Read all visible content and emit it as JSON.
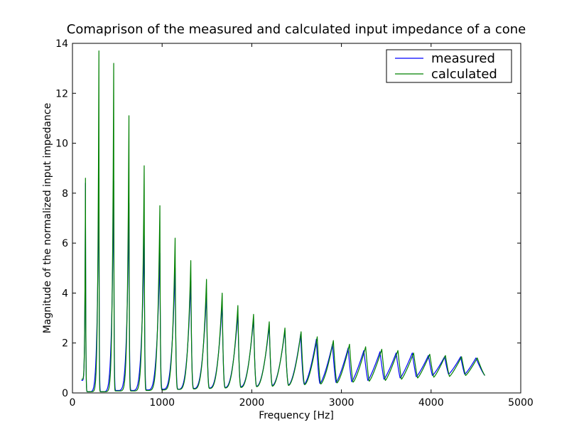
{
  "chart_data": {
    "type": "line",
    "title": "Comaprison of the measured and calculated input impedance of a cone",
    "xlabel": "Frequency [Hz]",
    "ylabel": "Magnitude of the normalized input impedance",
    "xlim": [
      0,
      5000
    ],
    "ylim": [
      0,
      14
    ],
    "xticks": [
      0,
      1000,
      2000,
      3000,
      4000,
      5000
    ],
    "xtick_labels": [
      "0",
      "1000",
      "2000",
      "3000",
      "4000",
      "5000"
    ],
    "yticks": [
      0,
      2,
      4,
      6,
      8,
      10,
      12,
      14
    ],
    "ytick_labels": [
      "0",
      "2",
      "4",
      "6",
      "8",
      "10",
      "12",
      "14"
    ],
    "grid": false,
    "legend_position": "top-right",
    "series": [
      {
        "name": "measured",
        "color": "#0000ff",
        "x_range": [
          100,
          4600
        ],
        "peaks": [
          {
            "x": 145,
            "y": 8.4
          },
          {
            "x": 295,
            "y": 8.6
          },
          {
            "x": 460,
            "y": 8.5
          },
          {
            "x": 630,
            "y": 7.6
          },
          {
            "x": 800,
            "y": 6.3
          },
          {
            "x": 975,
            "y": 5.6
          },
          {
            "x": 1145,
            "y": 5.0
          },
          {
            "x": 1320,
            "y": 4.5
          },
          {
            "x": 1495,
            "y": 4.0
          },
          {
            "x": 1670,
            "y": 3.6
          },
          {
            "x": 1845,
            "y": 3.2
          },
          {
            "x": 2020,
            "y": 3.0
          },
          {
            "x": 2195,
            "y": 2.7
          },
          {
            "x": 2370,
            "y": 2.5
          },
          {
            "x": 2545,
            "y": 2.35
          },
          {
            "x": 2720,
            "y": 2.15
          },
          {
            "x": 2900,
            "y": 1.95
          },
          {
            "x": 3075,
            "y": 1.8
          },
          {
            "x": 3250,
            "y": 1.7
          },
          {
            "x": 3430,
            "y": 1.65
          },
          {
            "x": 3610,
            "y": 1.6
          },
          {
            "x": 3790,
            "y": 1.6
          },
          {
            "x": 3970,
            "y": 1.5
          },
          {
            "x": 4150,
            "y": 1.45
          },
          {
            "x": 4330,
            "y": 1.45
          },
          {
            "x": 4500,
            "y": 1.4
          }
        ],
        "minima": [
          {
            "x": 100,
            "y": 0.5
          },
          {
            "x": 170,
            "y": 0.05
          },
          {
            "x": 320,
            "y": 0.05
          },
          {
            "x": 490,
            "y": 0.1
          },
          {
            "x": 660,
            "y": 0.1
          },
          {
            "x": 830,
            "y": 0.12
          },
          {
            "x": 1005,
            "y": 0.15
          },
          {
            "x": 1180,
            "y": 0.15
          },
          {
            "x": 1355,
            "y": 0.18
          },
          {
            "x": 1530,
            "y": 0.2
          },
          {
            "x": 1705,
            "y": 0.22
          },
          {
            "x": 1880,
            "y": 0.25
          },
          {
            "x": 2055,
            "y": 0.27
          },
          {
            "x": 2230,
            "y": 0.3
          },
          {
            "x": 2410,
            "y": 0.32
          },
          {
            "x": 2585,
            "y": 0.35
          },
          {
            "x": 2760,
            "y": 0.38
          },
          {
            "x": 2940,
            "y": 0.42
          },
          {
            "x": 3115,
            "y": 0.45
          },
          {
            "x": 3295,
            "y": 0.5
          },
          {
            "x": 3475,
            "y": 0.55
          },
          {
            "x": 3655,
            "y": 0.6
          },
          {
            "x": 3835,
            "y": 0.65
          },
          {
            "x": 4015,
            "y": 0.7
          },
          {
            "x": 4195,
            "y": 0.75
          },
          {
            "x": 4375,
            "y": 0.75
          },
          {
            "x": 4600,
            "y": 0.7
          }
        ]
      },
      {
        "name": "calculated",
        "color": "#008000",
        "x_range": [
          100,
          4600
        ],
        "peaks": [
          {
            "x": 145,
            "y": 8.6
          },
          {
            "x": 295,
            "y": 13.7
          },
          {
            "x": 460,
            "y": 13.2
          },
          {
            "x": 630,
            "y": 11.1
          },
          {
            "x": 800,
            "y": 9.1
          },
          {
            "x": 975,
            "y": 7.5
          },
          {
            "x": 1145,
            "y": 6.2
          },
          {
            "x": 1320,
            "y": 5.3
          },
          {
            "x": 1495,
            "y": 4.55
          },
          {
            "x": 1670,
            "y": 4.0
          },
          {
            "x": 1845,
            "y": 3.5
          },
          {
            "x": 2020,
            "y": 3.15
          },
          {
            "x": 2195,
            "y": 2.85
          },
          {
            "x": 2370,
            "y": 2.6
          },
          {
            "x": 2550,
            "y": 2.45
          },
          {
            "x": 2730,
            "y": 2.25
          },
          {
            "x": 2910,
            "y": 2.1
          },
          {
            "x": 3090,
            "y": 1.95
          },
          {
            "x": 3270,
            "y": 1.85
          },
          {
            "x": 3450,
            "y": 1.75
          },
          {
            "x": 3630,
            "y": 1.7
          },
          {
            "x": 3805,
            "y": 1.6
          },
          {
            "x": 3985,
            "y": 1.55
          },
          {
            "x": 4160,
            "y": 1.5
          },
          {
            "x": 4340,
            "y": 1.45
          },
          {
            "x": 4515,
            "y": 1.4
          }
        ],
        "minima": [
          {
            "x": 100,
            "y": 0.55
          },
          {
            "x": 170,
            "y": 0.05
          },
          {
            "x": 320,
            "y": 0.05
          },
          {
            "x": 490,
            "y": 0.08
          },
          {
            "x": 660,
            "y": 0.08
          },
          {
            "x": 830,
            "y": 0.1
          },
          {
            "x": 1005,
            "y": 0.12
          },
          {
            "x": 1180,
            "y": 0.14
          },
          {
            "x": 1355,
            "y": 0.16
          },
          {
            "x": 1530,
            "y": 0.18
          },
          {
            "x": 1705,
            "y": 0.2
          },
          {
            "x": 1880,
            "y": 0.22
          },
          {
            "x": 2055,
            "y": 0.25
          },
          {
            "x": 2230,
            "y": 0.27
          },
          {
            "x": 2410,
            "y": 0.3
          },
          {
            "x": 2590,
            "y": 0.33
          },
          {
            "x": 2770,
            "y": 0.36
          },
          {
            "x": 2950,
            "y": 0.4
          },
          {
            "x": 3130,
            "y": 0.43
          },
          {
            "x": 3310,
            "y": 0.47
          },
          {
            "x": 3490,
            "y": 0.5
          },
          {
            "x": 3670,
            "y": 0.55
          },
          {
            "x": 3850,
            "y": 0.6
          },
          {
            "x": 4030,
            "y": 0.63
          },
          {
            "x": 4205,
            "y": 0.66
          },
          {
            "x": 4385,
            "y": 0.7
          },
          {
            "x": 4600,
            "y": 0.7
          }
        ]
      }
    ]
  }
}
